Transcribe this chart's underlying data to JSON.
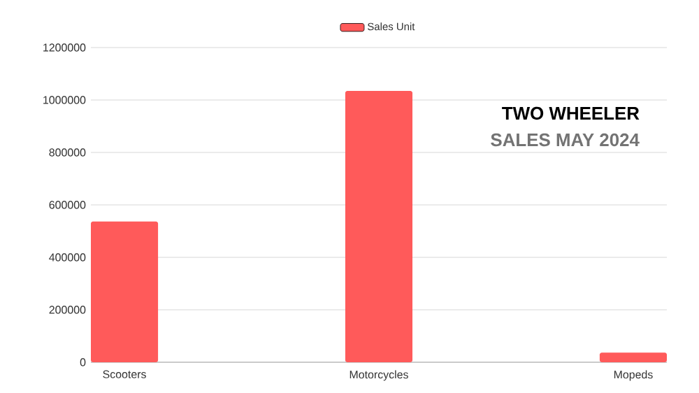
{
  "chart_data": {
    "type": "bar",
    "title": "TWO WHEELER",
    "subtitle": "SALES MAY 2024",
    "categories": [
      "Scooters",
      "Motorcycles",
      "Mopeds"
    ],
    "series": [
      {
        "name": "Sales Unit",
        "color": "#ff5a5a",
        "values": [
          537000,
          1035000,
          37000
        ]
      }
    ],
    "ylim": [
      0,
      1200000
    ],
    "yticks": [
      0,
      200000,
      400000,
      600000,
      800000,
      1000000,
      1200000
    ],
    "grid": "y",
    "legend": "top"
  }
}
